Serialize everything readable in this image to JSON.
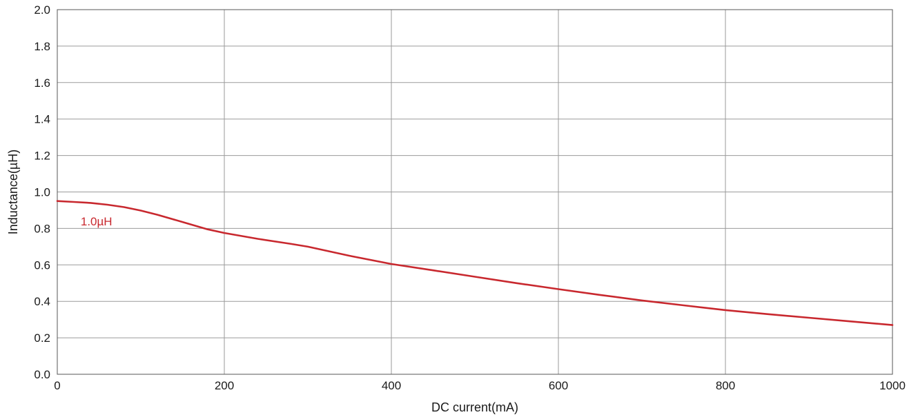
{
  "chart_data": {
    "type": "line",
    "title": "",
    "xlabel": "DC current(mA)",
    "ylabel": "Inductance(µH)",
    "xlim": [
      0,
      1000
    ],
    "ylim": [
      0,
      2.0
    ],
    "xticks": [
      0,
      200,
      400,
      600,
      800,
      1000
    ],
    "xtick_labels": [
      "0",
      "200",
      "400",
      "600",
      "800",
      "1000"
    ],
    "yticks": [
      0,
      0.2,
      0.4,
      0.6,
      0.8,
      1.0,
      1.2,
      1.4,
      1.6,
      1.8,
      2.0
    ],
    "ytick_labels": [
      "0.0",
      "0.2",
      "0.4",
      "0.6",
      "0.8",
      "1.0",
      "1.2",
      "1.4",
      "1.6",
      "1.8",
      "2.0"
    ],
    "grid": true,
    "series": [
      {
        "name": "1.0µH",
        "color": "#c8282e",
        "x": [
          0,
          20,
          40,
          60,
          80,
          100,
          120,
          150,
          180,
          200,
          240,
          280,
          300,
          350,
          400,
          450,
          500,
          550,
          600,
          650,
          700,
          750,
          800,
          850,
          900,
          950,
          1000
        ],
        "y": [
          0.95,
          0.945,
          0.94,
          0.93,
          0.917,
          0.898,
          0.875,
          0.835,
          0.795,
          0.775,
          0.743,
          0.715,
          0.7,
          0.65,
          0.605,
          0.57,
          0.535,
          0.5,
          0.467,
          0.435,
          0.405,
          0.378,
          0.352,
          0.33,
          0.31,
          0.29,
          0.27
        ]
      }
    ],
    "annotations": [
      {
        "text": "1.0µH",
        "x": 28,
        "y": 0.84,
        "color": "#c8282e"
      }
    ]
  }
}
